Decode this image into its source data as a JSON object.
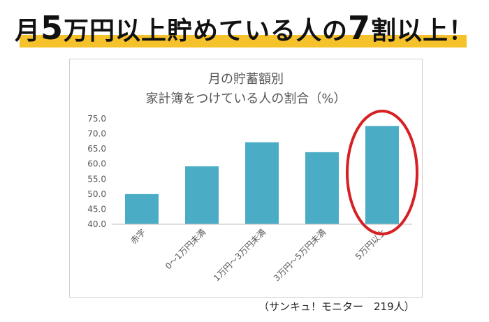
{
  "headline": {
    "prefix": "月",
    "num1": "5",
    "middle": "万円以上貯めている人の",
    "num2": "7",
    "suffix": "割以上！"
  },
  "chart_data": {
    "type": "bar",
    "title_line1": "月の貯蓄額別",
    "title_line2": "家計簿をつけている人の割合（%）",
    "categories": [
      "赤字",
      "0～1万円未満",
      "1万円～3万円未満",
      "3万円～5万円未満",
      "5万円以上"
    ],
    "values": [
      50.0,
      59.2,
      67.2,
      63.9,
      72.6
    ],
    "ylim": [
      40.0,
      75.0
    ],
    "yticks": [
      "40.0",
      "45.0",
      "50.0",
      "55.0",
      "60.0",
      "65.0",
      "70.0",
      "75.0"
    ],
    "bar_color": "#4bacc6",
    "highlight_color": "#d62024",
    "highlight_category": "5万円以上",
    "grid": false
  },
  "footer": {
    "source": "（サンキュ！モニター　219人）"
  }
}
